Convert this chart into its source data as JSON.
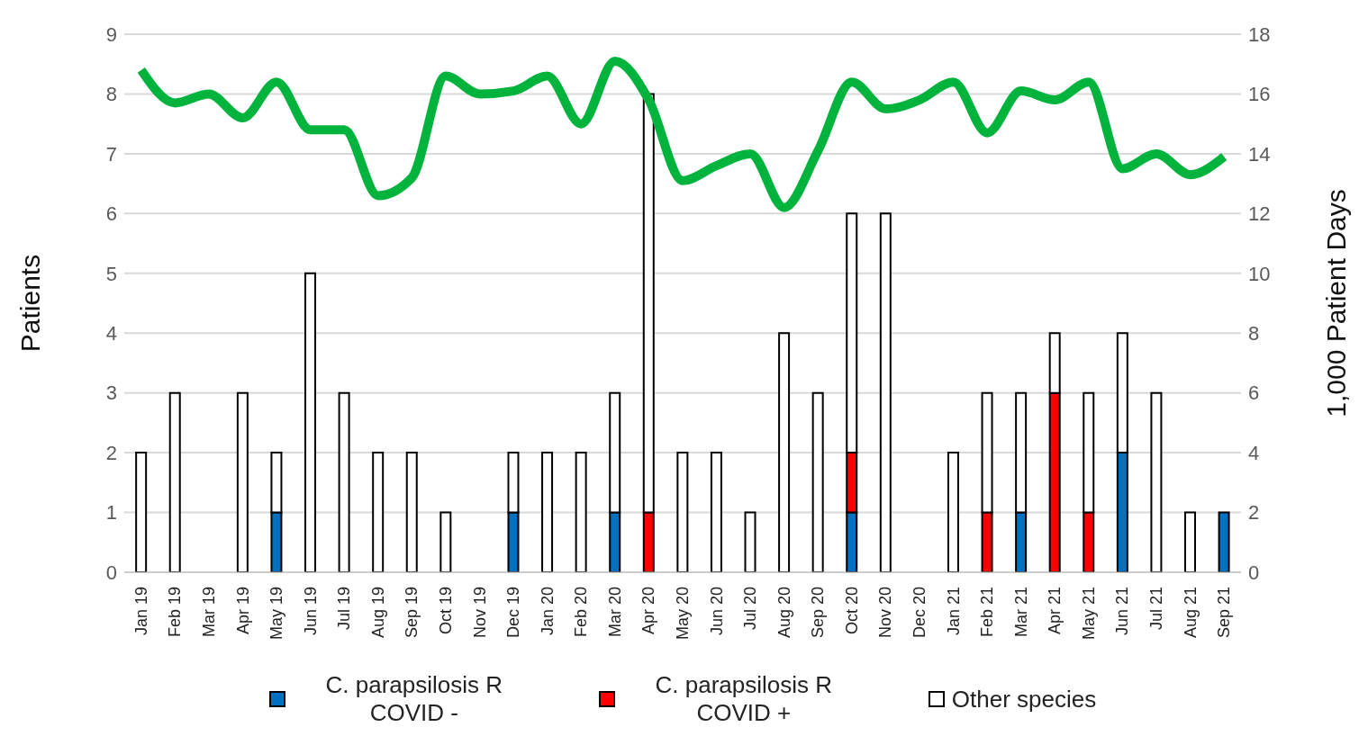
{
  "chart_data": {
    "type": "bar",
    "stacked": true,
    "ylabel": "Patients",
    "y2label": "1,000 Patient Days",
    "categories": [
      "Jan 19",
      "Feb 19",
      "Mar 19",
      "Apr 19",
      "May 19",
      "Jun 19",
      "Jul 19",
      "Aug 19",
      "Sep 19",
      "Oct 19",
      "Nov 19",
      "Dec 19",
      "Jan 20",
      "Feb 20",
      "Mar 20",
      "Apr 20",
      "May 20",
      "Jun 20",
      "Jul 20",
      "Aug 20",
      "Sep 20",
      "Oct 20",
      "Nov 20",
      "Dec 20",
      "Jan 21",
      "Feb 21",
      "Mar 21",
      "Apr 21",
      "May 21",
      "Jun 21",
      "Jul 21",
      "Aug 21",
      "Sep 21"
    ],
    "series": [
      {
        "name": "C. parapsilosis R COVID -",
        "color": "#0070c0",
        "values": [
          0,
          0,
          0,
          0,
          1,
          0,
          0,
          0,
          0,
          0,
          0,
          1,
          0,
          0,
          1,
          0,
          0,
          0,
          0,
          0,
          0,
          1,
          0,
          0,
          0,
          0,
          1,
          0,
          0,
          2,
          0,
          0,
          1
        ]
      },
      {
        "name": "C. parapsilosis R COVID +",
        "color": "#ff0000",
        "values": [
          0,
          0,
          0,
          0,
          0,
          0,
          0,
          0,
          0,
          0,
          0,
          0,
          0,
          0,
          0,
          1,
          0,
          0,
          0,
          0,
          0,
          1,
          0,
          0,
          0,
          1,
          0,
          3,
          1,
          0,
          0,
          0,
          0
        ]
      },
      {
        "name": "Other species",
        "color": "#ffffff",
        "values": [
          2,
          3,
          0,
          3,
          1,
          5,
          3,
          2,
          2,
          1,
          0,
          1,
          2,
          2,
          2,
          7,
          2,
          2,
          1,
          4,
          3,
          4,
          6,
          0,
          2,
          2,
          2,
          1,
          2,
          2,
          3,
          1,
          0
        ]
      },
      {
        "type": "line",
        "axis": "y2",
        "color": "#00b33c",
        "values": [
          16.8,
          15.7,
          16.0,
          15.2,
          16.4,
          14.8,
          14.8,
          12.6,
          13.2,
          16.6,
          16.0,
          16.1,
          16.6,
          15.0,
          17.1,
          15.8,
          13.1,
          13.6,
          14.0,
          12.2,
          14.1,
          16.4,
          15.5,
          15.8,
          16.4,
          14.7,
          16.1,
          15.8,
          16.4,
          13.5,
          14.0,
          13.3,
          13.9
        ]
      }
    ],
    "ylim": [
      0,
      9
    ],
    "yticks": [
      0,
      1,
      2,
      3,
      4,
      5,
      6,
      7,
      8,
      9
    ],
    "y2lim": [
      0,
      18
    ],
    "y2ticks": [
      0,
      2,
      4,
      6,
      8,
      10,
      12,
      14,
      16,
      18
    ],
    "grid": "y",
    "legend": "bottom",
    "marker": "none"
  }
}
